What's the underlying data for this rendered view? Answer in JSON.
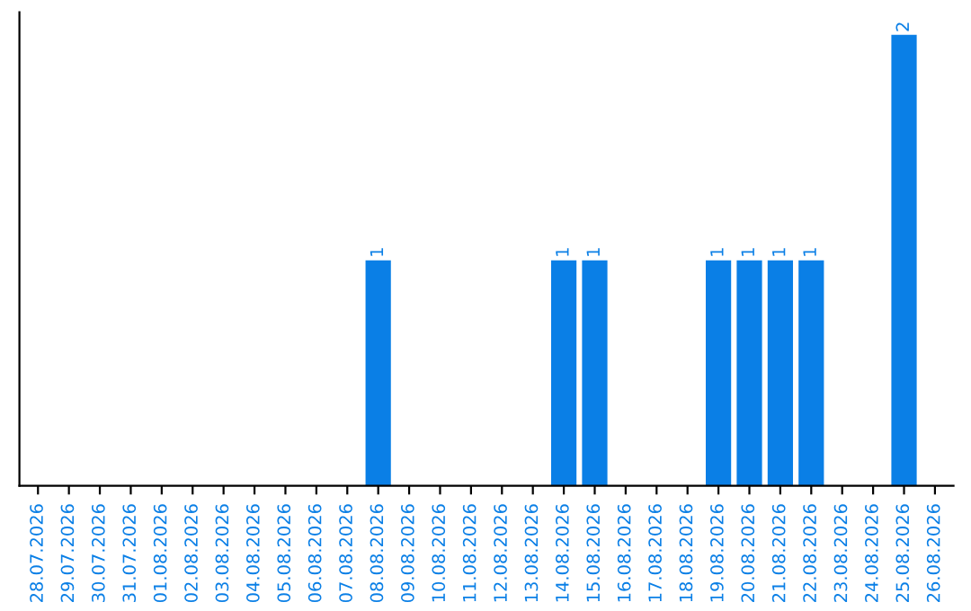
{
  "chart_data": {
    "type": "bar",
    "categories": [
      "28.07.2026",
      "29.07.2026",
      "30.07.2026",
      "31.07.2026",
      "01.08.2026",
      "02.08.2026",
      "03.08.2026",
      "04.08.2026",
      "05.08.2026",
      "06.08.2026",
      "07.08.2026",
      "08.08.2026",
      "09.08.2026",
      "10.08.2026",
      "11.08.2026",
      "12.08.2026",
      "13.08.2026",
      "14.08.2026",
      "15.08.2026",
      "16.08.2026",
      "17.08.2026",
      "18.08.2026",
      "19.08.2026",
      "20.08.2026",
      "21.08.2026",
      "22.08.2026",
      "23.08.2026",
      "24.08.2026",
      "25.08.2026",
      "26.08.2026"
    ],
    "values": [
      0,
      0,
      0,
      0,
      0,
      0,
      0,
      0,
      0,
      0,
      0,
      1,
      0,
      0,
      0,
      0,
      0,
      1,
      1,
      0,
      0,
      0,
      1,
      1,
      1,
      1,
      0,
      0,
      2,
      0
    ],
    "value_labels": [
      null,
      null,
      null,
      null,
      null,
      null,
      null,
      null,
      null,
      null,
      null,
      "1",
      null,
      null,
      null,
      null,
      null,
      "1",
      "1",
      null,
      null,
      null,
      "1",
      "1",
      "1",
      "1",
      null,
      null,
      "2",
      null
    ],
    "color": "#0a7fe6",
    "tick_labels": "x",
    "grid": false,
    "legend": false
  }
}
